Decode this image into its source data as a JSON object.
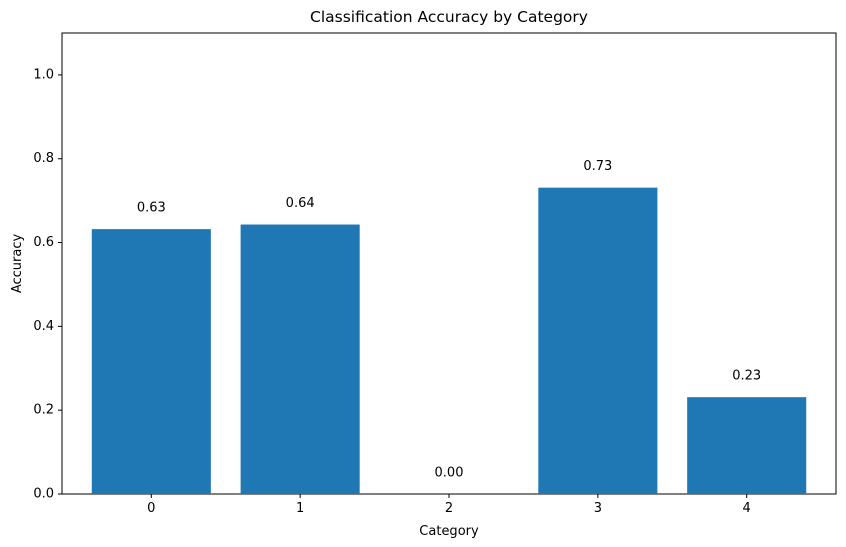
{
  "chart_data": {
    "type": "bar",
    "title": "Classification Accuracy by Category",
    "xlabel": "Category",
    "ylabel": "Accuracy",
    "categories": [
      "0",
      "1",
      "2",
      "3",
      "4"
    ],
    "values": [
      0.632,
      0.643,
      0.0,
      0.731,
      0.231
    ],
    "data_labels": [
      "0.63",
      "0.64",
      "0.00",
      "0.73",
      "0.23"
    ],
    "ylim": [
      0,
      1.1
    ],
    "yticks": [
      0.0,
      0.2,
      0.4,
      0.6,
      0.8,
      1.0
    ],
    "ytick_labels": [
      "0.0",
      "0.2",
      "0.4",
      "0.6",
      "0.8",
      "1.0"
    ],
    "bar_color": "#1f77b4",
    "grid": false,
    "legend": "none"
  }
}
